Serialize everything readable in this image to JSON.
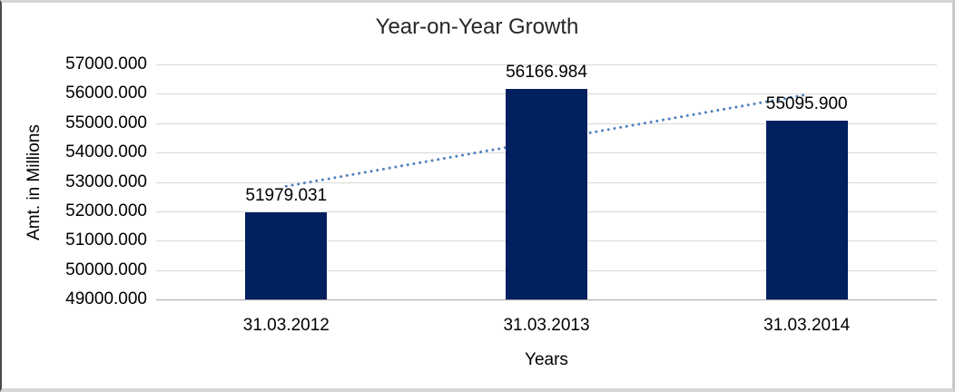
{
  "chart_data": {
    "type": "bar",
    "title": "Year-on-Year Growth",
    "xlabel": "Years",
    "ylabel": "Amt. in Millions",
    "categories": [
      "31.03.2012",
      "31.03.2013",
      "31.03.2014"
    ],
    "values": [
      51979.031,
      56166.984,
      55095.9
    ],
    "data_labels": [
      "51979.031",
      "56166.984",
      "55095.900"
    ],
    "ylim": [
      49000,
      57000
    ],
    "ytick_step": 1000,
    "ytick_labels": [
      "49000.000",
      "50000.000",
      "51000.000",
      "52000.000",
      "53000.000",
      "54000.000",
      "55000.000",
      "56000.000",
      "57000.000"
    ],
    "grid": true,
    "legend_position": "none",
    "bar_color": "#002060",
    "trendline": {
      "type": "linear",
      "style": "dotted",
      "color": "#4E81BD"
    }
  }
}
